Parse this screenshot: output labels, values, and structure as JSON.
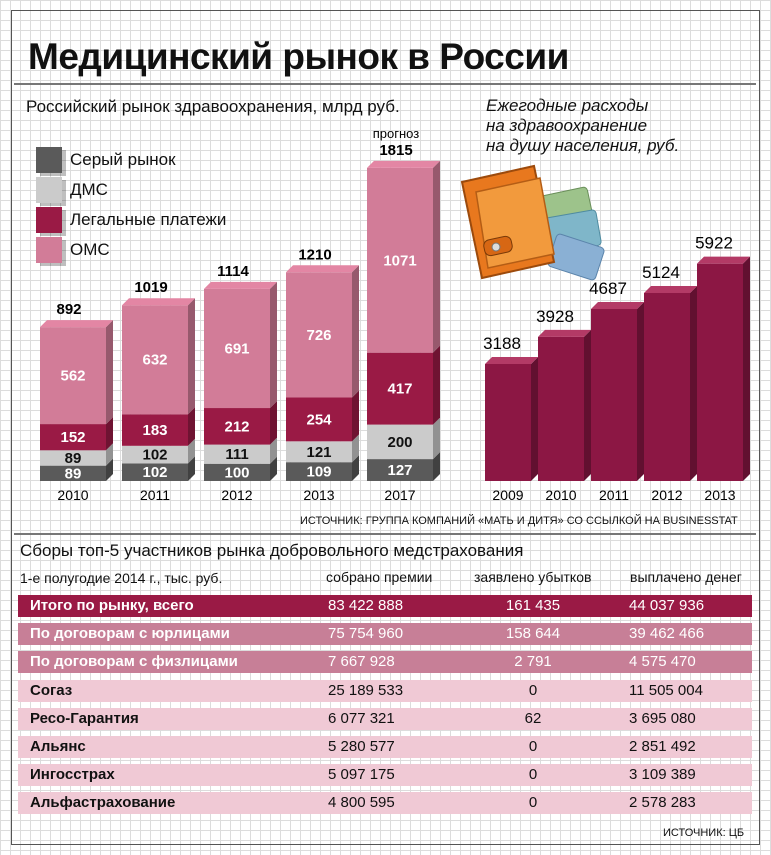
{
  "title": "Медицинский рынок в России",
  "left_subtitle": "Российский рынок здравоохранения, млрд руб.",
  "right_subtitle_lines": [
    "Ежегодные расходы",
    "на здравоохранение",
    "на душу населения, руб."
  ],
  "forecast_label": "прогноз",
  "legend": [
    {
      "label": "Серый рынок",
      "color": "#5a5a5a"
    },
    {
      "label": "ДМС",
      "color": "#cbcbcb"
    },
    {
      "label": "Легальные платежи",
      "color": "#9a1a45"
    },
    {
      "label": "ОМС",
      "color": "#d27c98"
    }
  ],
  "source_top": "ИСТОЧНИК: ГРУППА КОМПАНИЙ «МАТЬ И ДИТЯ» СО ССЫЛКОЙ НА BUSINESSTAT",
  "chart_data": [
    {
      "type": "bar",
      "stacked": true,
      "title": "Российский рынок здравоохранения, млрд руб.",
      "categories": [
        "2010",
        "2011",
        "2012",
        "2013",
        "2017"
      ],
      "category_notes": [
        "",
        "",
        "",
        "",
        "прогноз"
      ],
      "totals": [
        892,
        1019,
        1114,
        1210,
        1815
      ],
      "series": [
        {
          "name": "Серый рынок",
          "values": [
            89,
            102,
            100,
            109,
            127
          ]
        },
        {
          "name": "ДМС",
          "values": [
            89,
            102,
            111,
            121,
            200
          ]
        },
        {
          "name": "Легальные платежи",
          "values": [
            152,
            183,
            212,
            254,
            417
          ]
        },
        {
          "name": "ОМС",
          "values": [
            562,
            632,
            691,
            726,
            1071
          ]
        }
      ]
    },
    {
      "type": "bar",
      "title": "Ежегодные расходы на здравоохранение на душу населения, руб.",
      "categories": [
        "2009",
        "2010",
        "2011",
        "2012",
        "2013"
      ],
      "values": [
        3188,
        3928,
        4687,
        5124,
        5922
      ]
    }
  ],
  "table": {
    "title": "Сборы топ-5  участников рынка добровольного медстрахования",
    "period": "1-е полугодие 2014 г., тыс. руб.",
    "columns": [
      "собрано премии",
      "заявлено убытков",
      "выплачено денег"
    ],
    "rows": [
      {
        "name": "Итого по рынку, всего",
        "premiums": "83 422 888",
        "claims": "161 435",
        "paid": "44 037 936",
        "color": "#9a1a45"
      },
      {
        "name": "По договорам с юрлицами",
        "premiums": "75 754 960",
        "claims": "158 644",
        "paid": "39 462 466",
        "color": "#c77f97"
      },
      {
        "name": "По договорам с физлицами",
        "premiums": "7 667 928",
        "claims": "2 791",
        "paid": "4 575 470",
        "color": "#c77f97"
      },
      {
        "name": "Согаз",
        "premiums": "25 189 533",
        "claims": "0",
        "paid": "11 505 004",
        "color": "#f0c9d5"
      },
      {
        "name": "Ресо-Гарантия",
        "premiums": "6 077 321",
        "claims": "62",
        "paid": "3 695 080",
        "color": "#f0c9d5"
      },
      {
        "name": "Альянс",
        "premiums": "5 280 577",
        "claims": "0",
        "paid": "2 851 492",
        "color": "#f0c9d5"
      },
      {
        "name": "Ингосстрах",
        "premiums": "5 097 175",
        "claims": "0",
        "paid": "3 109 389",
        "color": "#f0c9d5"
      },
      {
        "name": "Альфастрахование",
        "premiums": "4 800 595",
        "claims": "0",
        "paid": "2 578 283",
        "color": "#f0c9d5"
      }
    ]
  },
  "source_bottom": "ИСТОЧНИК: ЦБ"
}
